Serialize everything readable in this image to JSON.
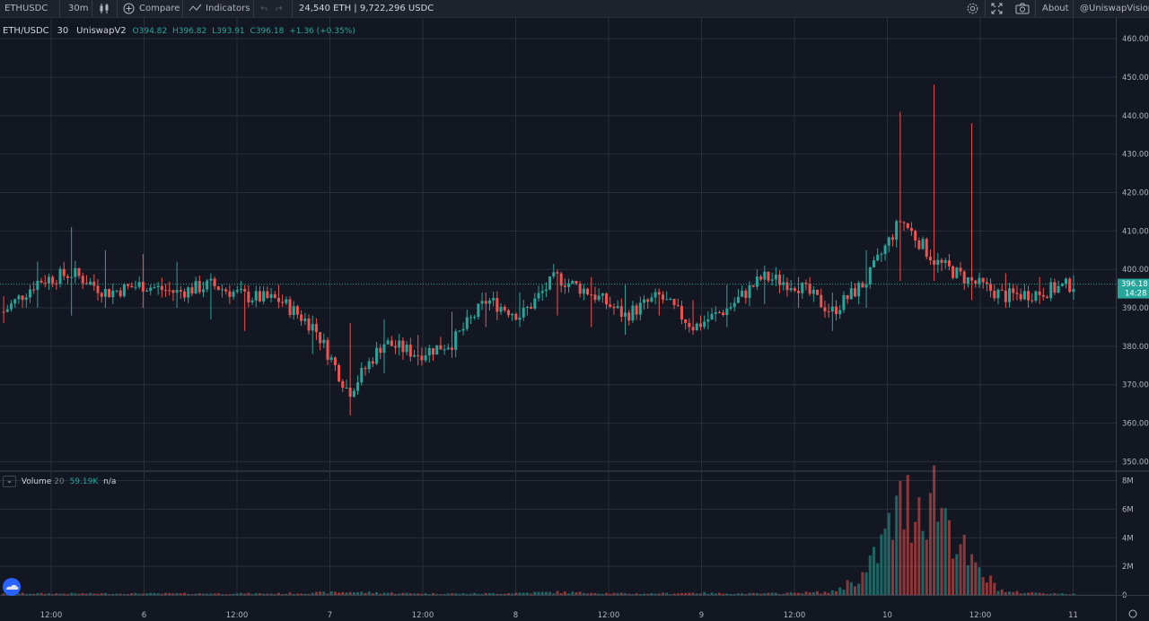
{
  "toolbar": {
    "symbol": "ETHUSDC",
    "interval": "30m",
    "compare_label": "Compare",
    "indicators_label": "Indicators",
    "liquidity": "24,540 ETH | 9,722,296 USDC",
    "about_label": "About",
    "account_label": "@UniswapVision"
  },
  "legend": {
    "pair": "ETH/USDC",
    "interval": "30",
    "exchange": "UniswapV2",
    "open": "O394.82",
    "high": "H396.82",
    "low": "L393.91",
    "close": "C396.18",
    "change": "+1.36 (+0.35%)"
  },
  "volume_legend": {
    "name": "Volume",
    "length": "20",
    "value": "59.19K",
    "ma": "n/a"
  },
  "price_axis": {
    "labels": [
      "460.00",
      "450.00",
      "440.00",
      "430.00",
      "420.00",
      "410.00",
      "400.00",
      "390.00",
      "380.00",
      "370.00",
      "360.00",
      "350.00"
    ],
    "last_price": "396.18",
    "countdown": "14:28"
  },
  "volume_axis": {
    "labels": [
      "8M",
      "6M",
      "4M",
      "2M",
      "0"
    ]
  },
  "time_axis": {
    "labels": [
      "12:00",
      "6",
      "12:00",
      "7",
      "12:00",
      "8",
      "12:00",
      "9",
      "12:00",
      "10",
      "12:00",
      "11"
    ]
  },
  "colors": {
    "background": "#131722",
    "up": "#26a69a",
    "down": "#ef5350",
    "grid": "#2a2e39",
    "text": "#b2b5be",
    "last_price_line": "#26a69a"
  },
  "chart_data": {
    "type": "candlestick",
    "symbol": "ETH/USDC",
    "interval": "30",
    "price_range": [
      348,
      464
    ],
    "volume_range": [
      0,
      8.6
    ],
    "volume_unit": "M",
    "series": [
      {
        "name": "ETH/USDC",
        "t": [
          "5 ~03:00",
          "5 ~12:00",
          "6 00:00",
          "6 12:00",
          "7 00:00",
          "7 ~06:00",
          "7 ~09:00",
          "7 12:00",
          "7 ~15:00",
          "7 ~18:00",
          "7 ~22:00",
          "8 00:00",
          "8 ~04:00",
          "8 ~09:00",
          "8 12:00",
          "8 ~18:00",
          "9 00:00",
          "9 ~03:00",
          "9 ~09:00",
          "9 12:00",
          "9 ~18:00",
          "9 ~21:00",
          "10 ~03:00",
          "10 ~09:00",
          "10 ~12:00",
          "10 ~16:00",
          "10 ~17:00",
          "10 ~17:30",
          "10 ~18:00",
          "10 ~20:00",
          "10 ~22:00",
          "11 00:00"
        ],
        "close": [
          389,
          397,
          399,
          394,
          396,
          394,
          396,
          393,
          392,
          385,
          368,
          381,
          378,
          381,
          392,
          388,
          398,
          394,
          388,
          393,
          385,
          390,
          398,
          396,
          389,
          397,
          413,
          402,
          397,
          393,
          394,
          396.18
        ],
        "high": [
          393,
          402,
          411,
          405,
          404,
          402,
          399,
          396,
          396,
          388,
          386,
          387,
          383,
          389,
          394,
          394,
          400,
          398,
          396,
          395,
          392,
          396,
          401,
          398,
          394,
          405,
          441,
          448,
          438,
          399,
          398,
          398.5
        ],
        "low": [
          386,
          390,
          388,
          390,
          390,
          390,
          387,
          384,
          390,
          378,
          362,
          373,
          375,
          377,
          385,
          385,
          388,
          385,
          383,
          388,
          383,
          385,
          391,
          390,
          384,
          390,
          397,
          397,
          392,
          390,
          391,
          393.9
        ]
      }
    ],
    "volume_series": {
      "name": "Volume",
      "values_M": [
        0.1,
        0.1,
        0.1,
        0.1,
        0.1,
        0.1,
        0.1,
        0.1,
        0.1,
        0.15,
        0.2,
        0.15,
        0.1,
        0.1,
        0.1,
        0.15,
        0.2,
        0.15,
        0.1,
        0.1,
        0.15,
        0.1,
        0.1,
        0.15,
        0.2,
        1.5,
        6.1,
        7.2,
        2.1,
        0.2,
        0.15,
        0.06
      ]
    },
    "last_price": 396.18,
    "xlabel": "",
    "ylabel": ""
  }
}
